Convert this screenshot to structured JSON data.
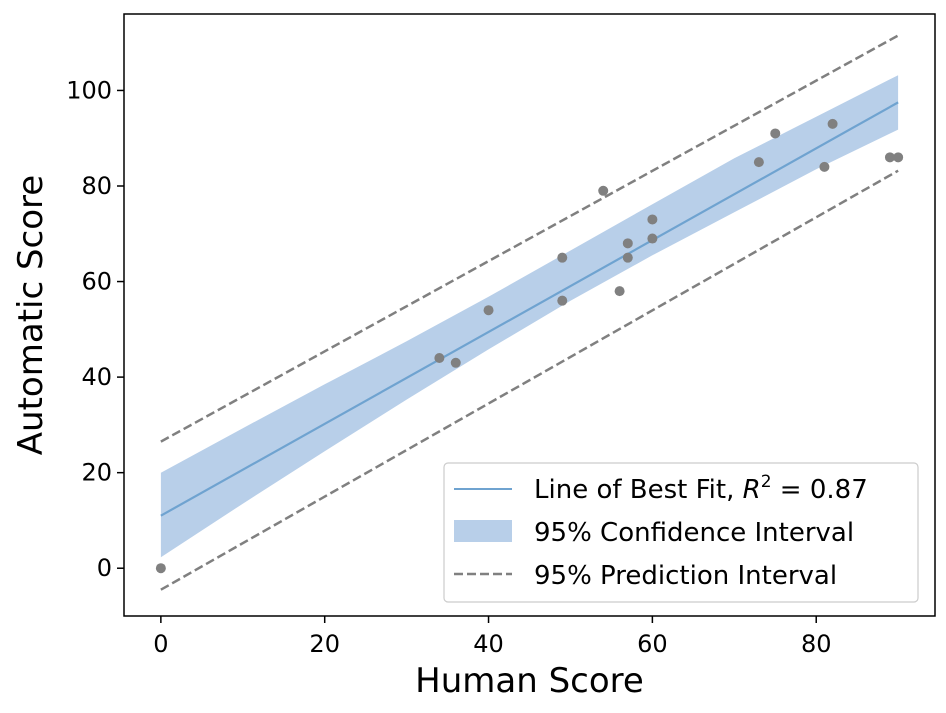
{
  "chart_data": {
    "type": "scatter",
    "title": "",
    "xlabel": "Human Score",
    "ylabel": "Automatic Score",
    "xlim": [
      -4.5,
      94.5
    ],
    "ylim": [
      -10,
      116
    ],
    "xticks": [
      0,
      20,
      40,
      60,
      80
    ],
    "yticks": [
      0,
      20,
      40,
      60,
      80,
      100
    ],
    "points": {
      "x": [
        0,
        34,
        36,
        40,
        49,
        49,
        54,
        56,
        57,
        57,
        60,
        60,
        73,
        75,
        81,
        82,
        89,
        90
      ],
      "y": [
        0,
        44,
        43,
        54,
        65,
        56,
        79,
        58,
        68,
        65,
        73,
        69,
        85,
        91,
        84,
        93,
        86,
        86
      ]
    },
    "fit_line": {
      "x": [
        0,
        90
      ],
      "y": [
        11,
        97.5
      ]
    },
    "confidence_interval": {
      "x": [
        0,
        10,
        20,
        30,
        40,
        50,
        60,
        70,
        80,
        90
      ],
      "lower": [
        2.3,
        13.5,
        24.5,
        35.3,
        45.8,
        56.0,
        65.5,
        74.5,
        83.5,
        91.8
      ],
      "upper": [
        20,
        29.3,
        38.5,
        47.5,
        56.8,
        66.5,
        76.2,
        85.8,
        94.5,
        103.2
      ]
    },
    "prediction_interval": {
      "x": [
        0,
        90
      ],
      "lower": [
        -4.5,
        83.2
      ],
      "upper": [
        26.5,
        111.5
      ]
    },
    "legend": {
      "position": "bottom-right",
      "entries": [
        {
          "label_prefix": "Line of Best Fit, ",
          "r2_symbol": "R",
          "r2_exponent": "2",
          "r2_value": " = 0.87"
        },
        {
          "label": "95% Confidence Interval"
        },
        {
          "label": "95% Prediction Interval"
        }
      ]
    },
    "colors": {
      "points": "#808080",
      "fit_line": "#6fa3d0",
      "confidence_fill": "#b8cfe9",
      "prediction_line": "#808080",
      "axes": "#000000"
    }
  }
}
